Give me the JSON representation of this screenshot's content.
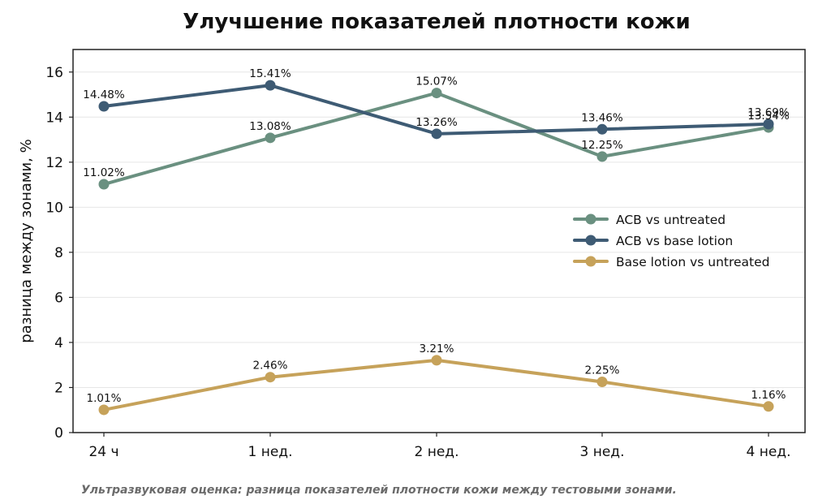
{
  "chart_data": {
    "type": "line",
    "title": "Улучшение показателей плотности кожи",
    "subtitle": "Ультразвуковая оценка: разница показателей плотности кожи между тестовыми зонами.",
    "xlabel": "",
    "ylabel": "разница между зонами, %",
    "categories": [
      "24 ч",
      "1 нед.",
      "2 нед.",
      "3 нед.",
      "4 нед."
    ],
    "ylim": [
      0,
      17
    ],
    "yticks": [
      0,
      2,
      4,
      6,
      8,
      10,
      12,
      14,
      16
    ],
    "grid": "horizontal",
    "legend_position": "right",
    "series": [
      {
        "name": "ACB vs untreated",
        "color": "#6a9080",
        "values": [
          11.02,
          13.08,
          15.07,
          12.25,
          13.54
        ],
        "labels": [
          "11.02%",
          "13.08%",
          "15.07%",
          "12.25%",
          "13.54%"
        ]
      },
      {
        "name": "ACB vs base lotion",
        "color": "#3e5b74",
        "values": [
          14.48,
          15.41,
          13.26,
          13.46,
          13.69
        ],
        "labels": [
          "14.48%",
          "15.41%",
          "13.26%",
          "13.46%",
          "13.69%"
        ]
      },
      {
        "name": "Base lotion vs untreated",
        "color": "#c6a25a",
        "values": [
          1.01,
          2.46,
          3.21,
          2.25,
          1.16
        ],
        "labels": [
          "1.01%",
          "2.46%",
          "3.21%",
          "2.25%",
          "1.16%"
        ]
      }
    ]
  }
}
